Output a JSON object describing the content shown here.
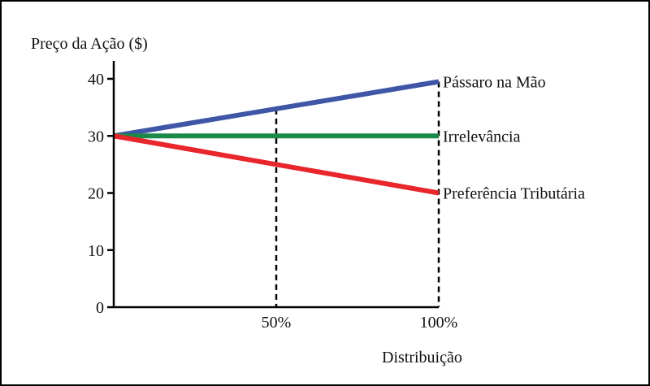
{
  "chart_data": {
    "type": "line",
    "title": "",
    "ylabel": "Preço da Ação ($)",
    "xlabel": "Distribuição",
    "ylim": [
      0,
      42
    ],
    "yticks": [
      0,
      10,
      20,
      30,
      40
    ],
    "xlim": [
      0,
      100
    ],
    "xticks": [
      {
        "value": 50,
        "label": "50%"
      },
      {
        "value": 100,
        "label": "100%"
      }
    ],
    "reference_lines": [
      50,
      100
    ],
    "grid": false,
    "series": [
      {
        "name": "Pássaro na Mão",
        "x": [
          0,
          100
        ],
        "y": [
          30,
          39.5
        ],
        "color": "#3e56a6"
      },
      {
        "name": "Irrelevância",
        "x": [
          0,
          100
        ],
        "y": [
          30,
          30
        ],
        "color": "#1b8a48"
      },
      {
        "name": "Preferência Tributária",
        "x": [
          0,
          100
        ],
        "y": [
          30,
          20
        ],
        "color": "#e8262c"
      }
    ]
  }
}
